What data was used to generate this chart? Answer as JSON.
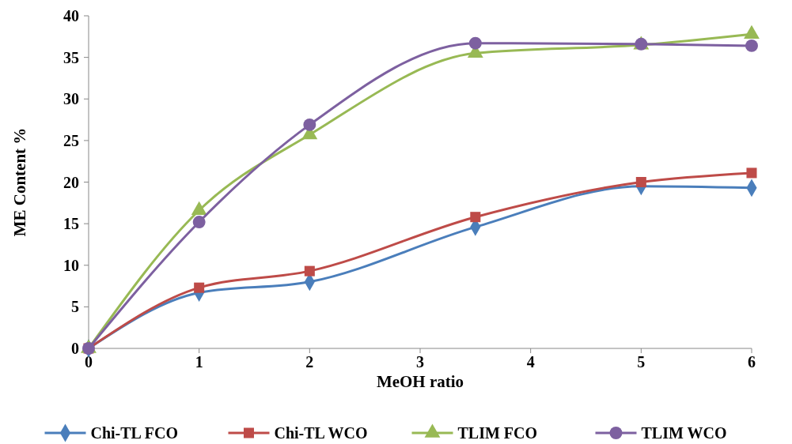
{
  "chart_data": {
    "type": "line",
    "xlabel": "MeOH ratio",
    "ylabel": "ME Content %",
    "x": [
      0,
      1,
      2,
      3.5,
      5,
      6
    ],
    "xlim": [
      0,
      6
    ],
    "xticks": [
      0,
      1,
      2,
      3,
      4,
      5,
      6
    ],
    "ylim": [
      0,
      40
    ],
    "yticks": [
      0,
      5,
      10,
      15,
      20,
      25,
      30,
      35,
      40
    ],
    "grid": false,
    "legend": "bottom",
    "series": [
      {
        "name": "Chi-TL FCO",
        "color": "#4a7ebb",
        "marker": "diamond",
        "values": [
          0,
          6.7,
          8.0,
          14.6,
          19.5,
          19.3
        ]
      },
      {
        "name": "Chi-TL WCO",
        "color": "#be4b48",
        "marker": "square",
        "values": [
          0,
          7.3,
          9.3,
          15.8,
          20.0,
          21.1
        ]
      },
      {
        "name": "TLIM FCO",
        "color": "#98b954",
        "marker": "triangle",
        "values": [
          0,
          16.6,
          25.7,
          35.5,
          36.5,
          37.8
        ]
      },
      {
        "name": "TLIM WCO",
        "color": "#7d60a0",
        "marker": "circle",
        "values": [
          0,
          15.2,
          26.9,
          36.7,
          36.6,
          36.4
        ]
      }
    ]
  }
}
